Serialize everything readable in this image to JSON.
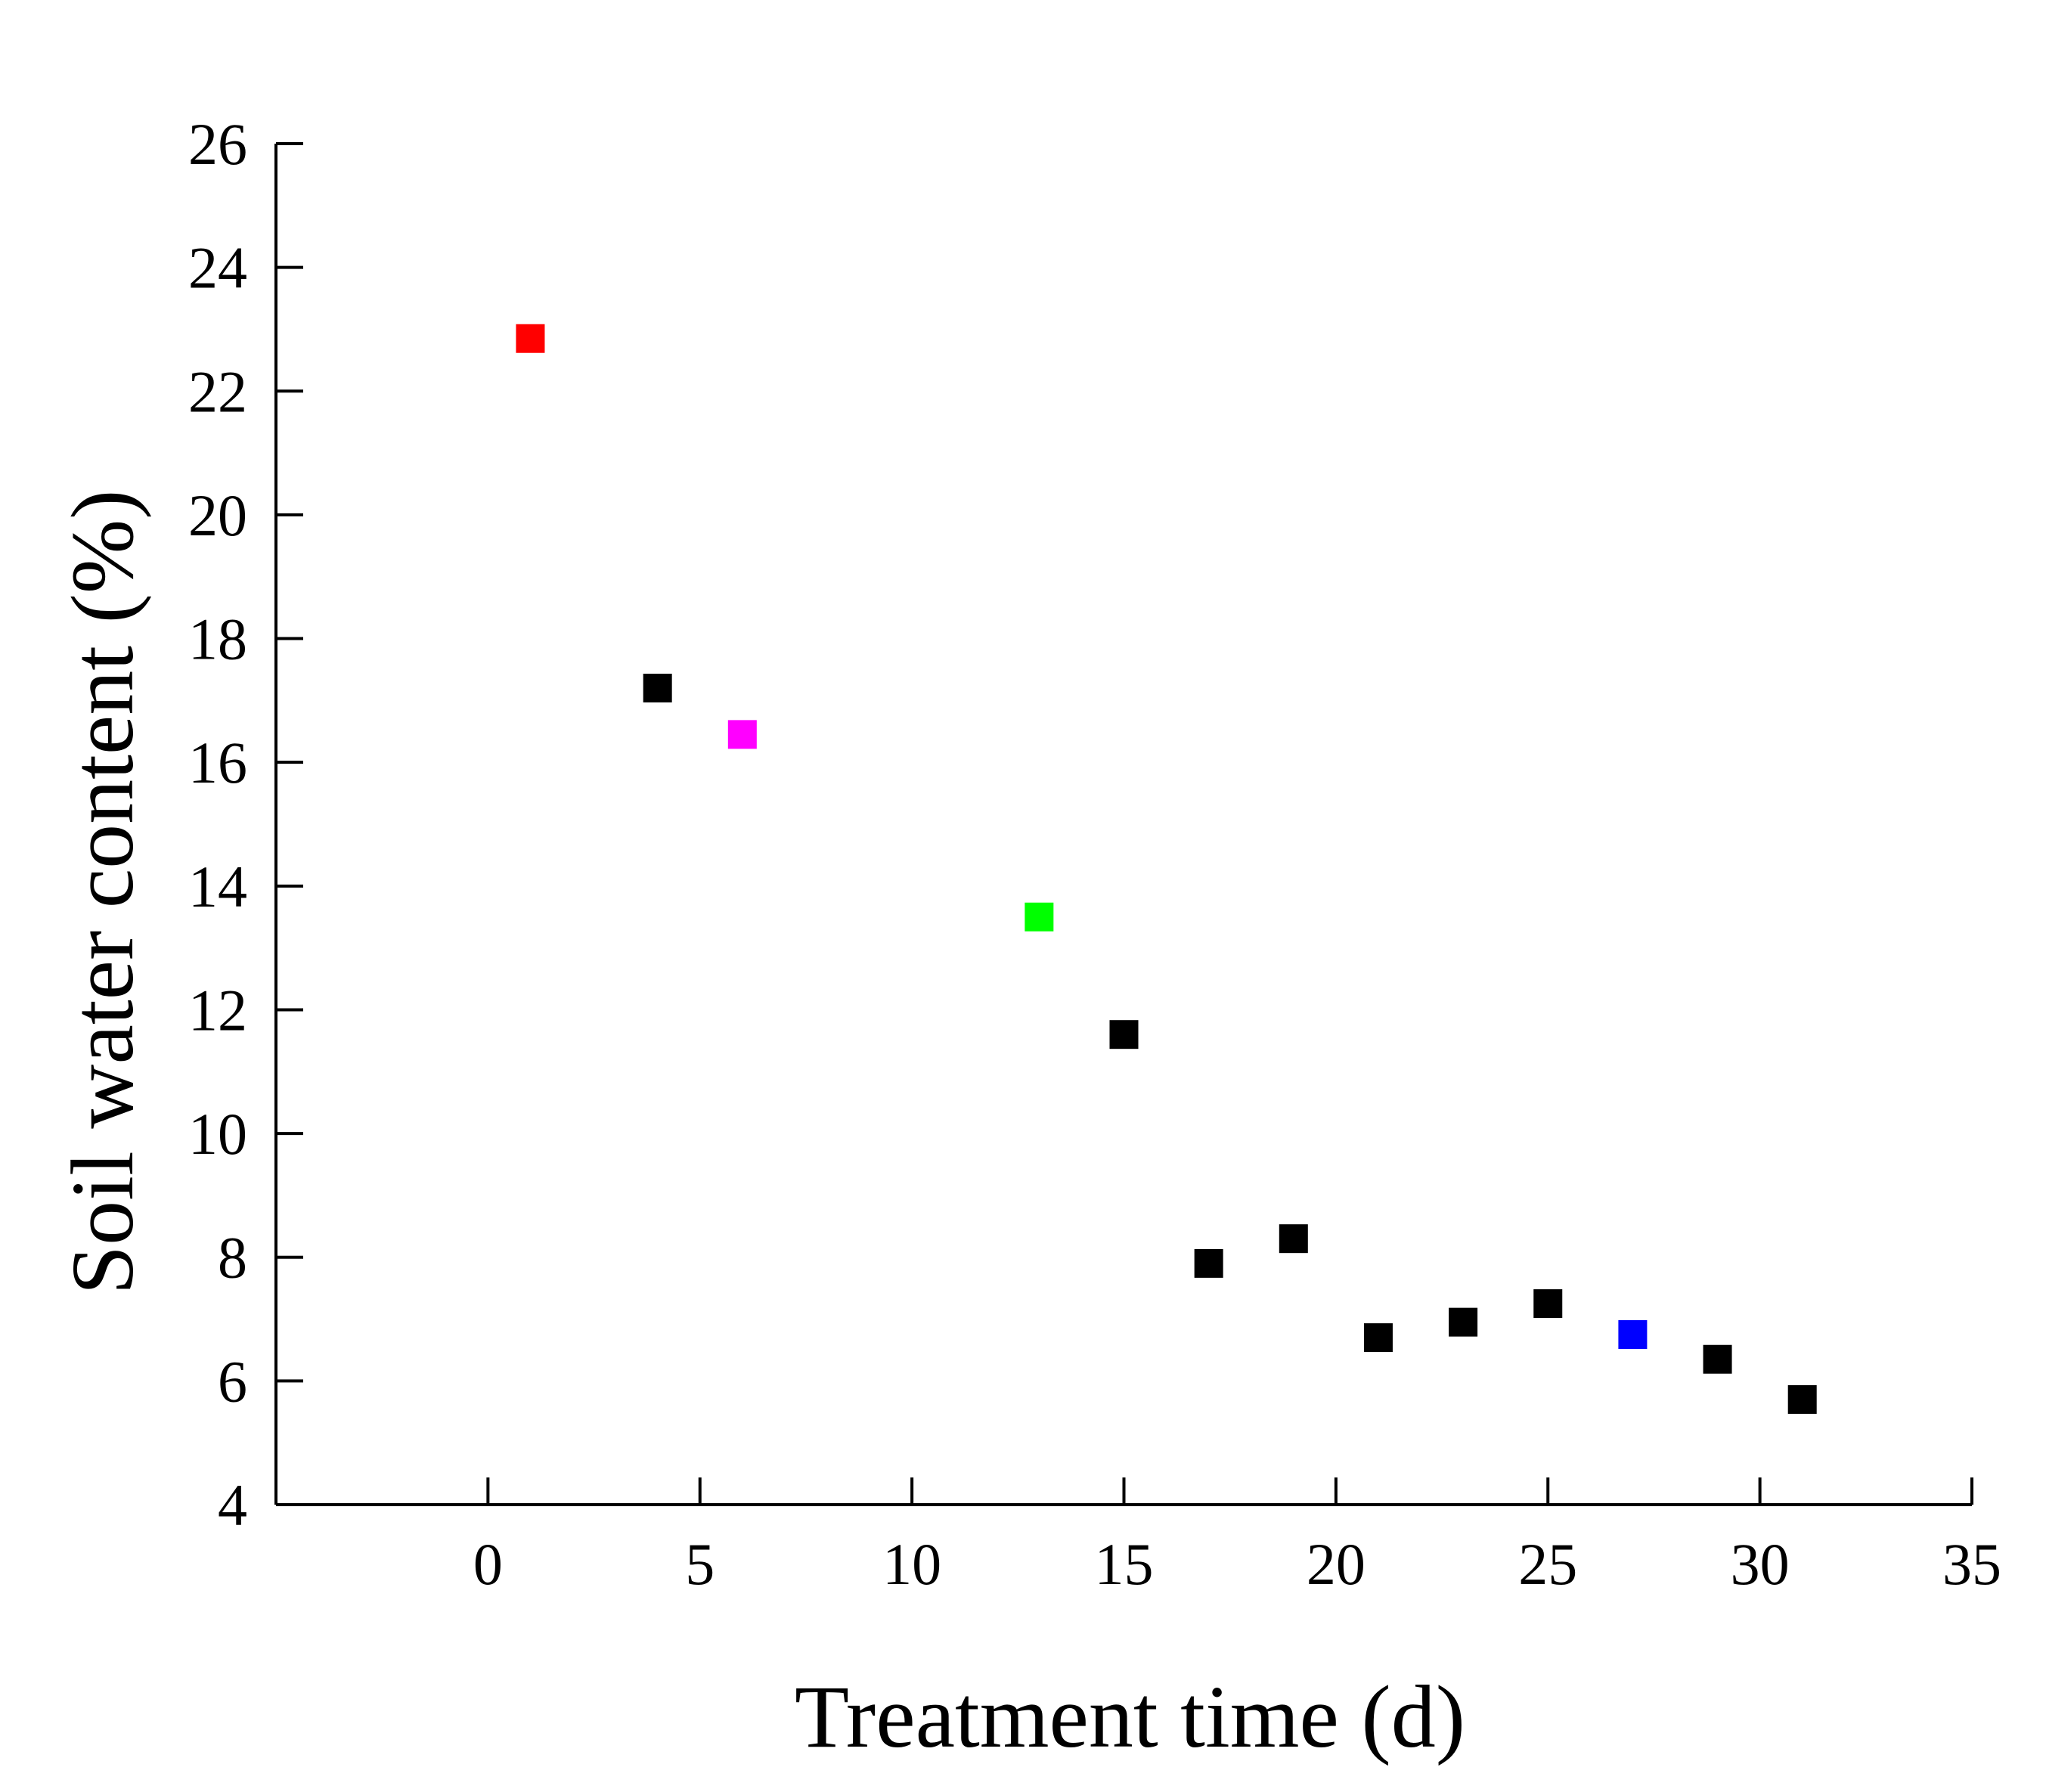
{
  "chart_data": {
    "type": "scatter",
    "title": "",
    "xlabel": "Treatment time (d)",
    "ylabel": "Soil water content (%)",
    "xlim": [
      -5,
      35
    ],
    "ylim": [
      4,
      26
    ],
    "x_ticks": [
      0,
      5,
      10,
      15,
      20,
      25,
      30,
      35
    ],
    "y_ticks": [
      4,
      6,
      8,
      10,
      12,
      14,
      16,
      18,
      20,
      22,
      24,
      26
    ],
    "grid": false,
    "legend": "none",
    "series": [
      {
        "name": "Soil water content",
        "points": [
          {
            "x": 1,
            "y": 22.85,
            "color": "#ff0000"
          },
          {
            "x": 4,
            "y": 17.2,
            "color": "#000000"
          },
          {
            "x": 6,
            "y": 16.45,
            "color": "#ff00ff"
          },
          {
            "x": 13,
            "y": 13.5,
            "color": "#00ff00"
          },
          {
            "x": 15,
            "y": 11.6,
            "color": "#000000"
          },
          {
            "x": 17,
            "y": 7.9,
            "color": "#000000"
          },
          {
            "x": 19,
            "y": 8.3,
            "color": "#000000"
          },
          {
            "x": 21,
            "y": 6.7,
            "color": "#000000"
          },
          {
            "x": 23,
            "y": 6.95,
            "color": "#000000"
          },
          {
            "x": 25,
            "y": 7.25,
            "color": "#000000"
          },
          {
            "x": 27,
            "y": 6.75,
            "color": "#0000ff"
          },
          {
            "x": 29,
            "y": 6.35,
            "color": "#000000"
          },
          {
            "x": 31,
            "y": 5.7,
            "color": "#000000"
          }
        ]
      }
    ]
  }
}
